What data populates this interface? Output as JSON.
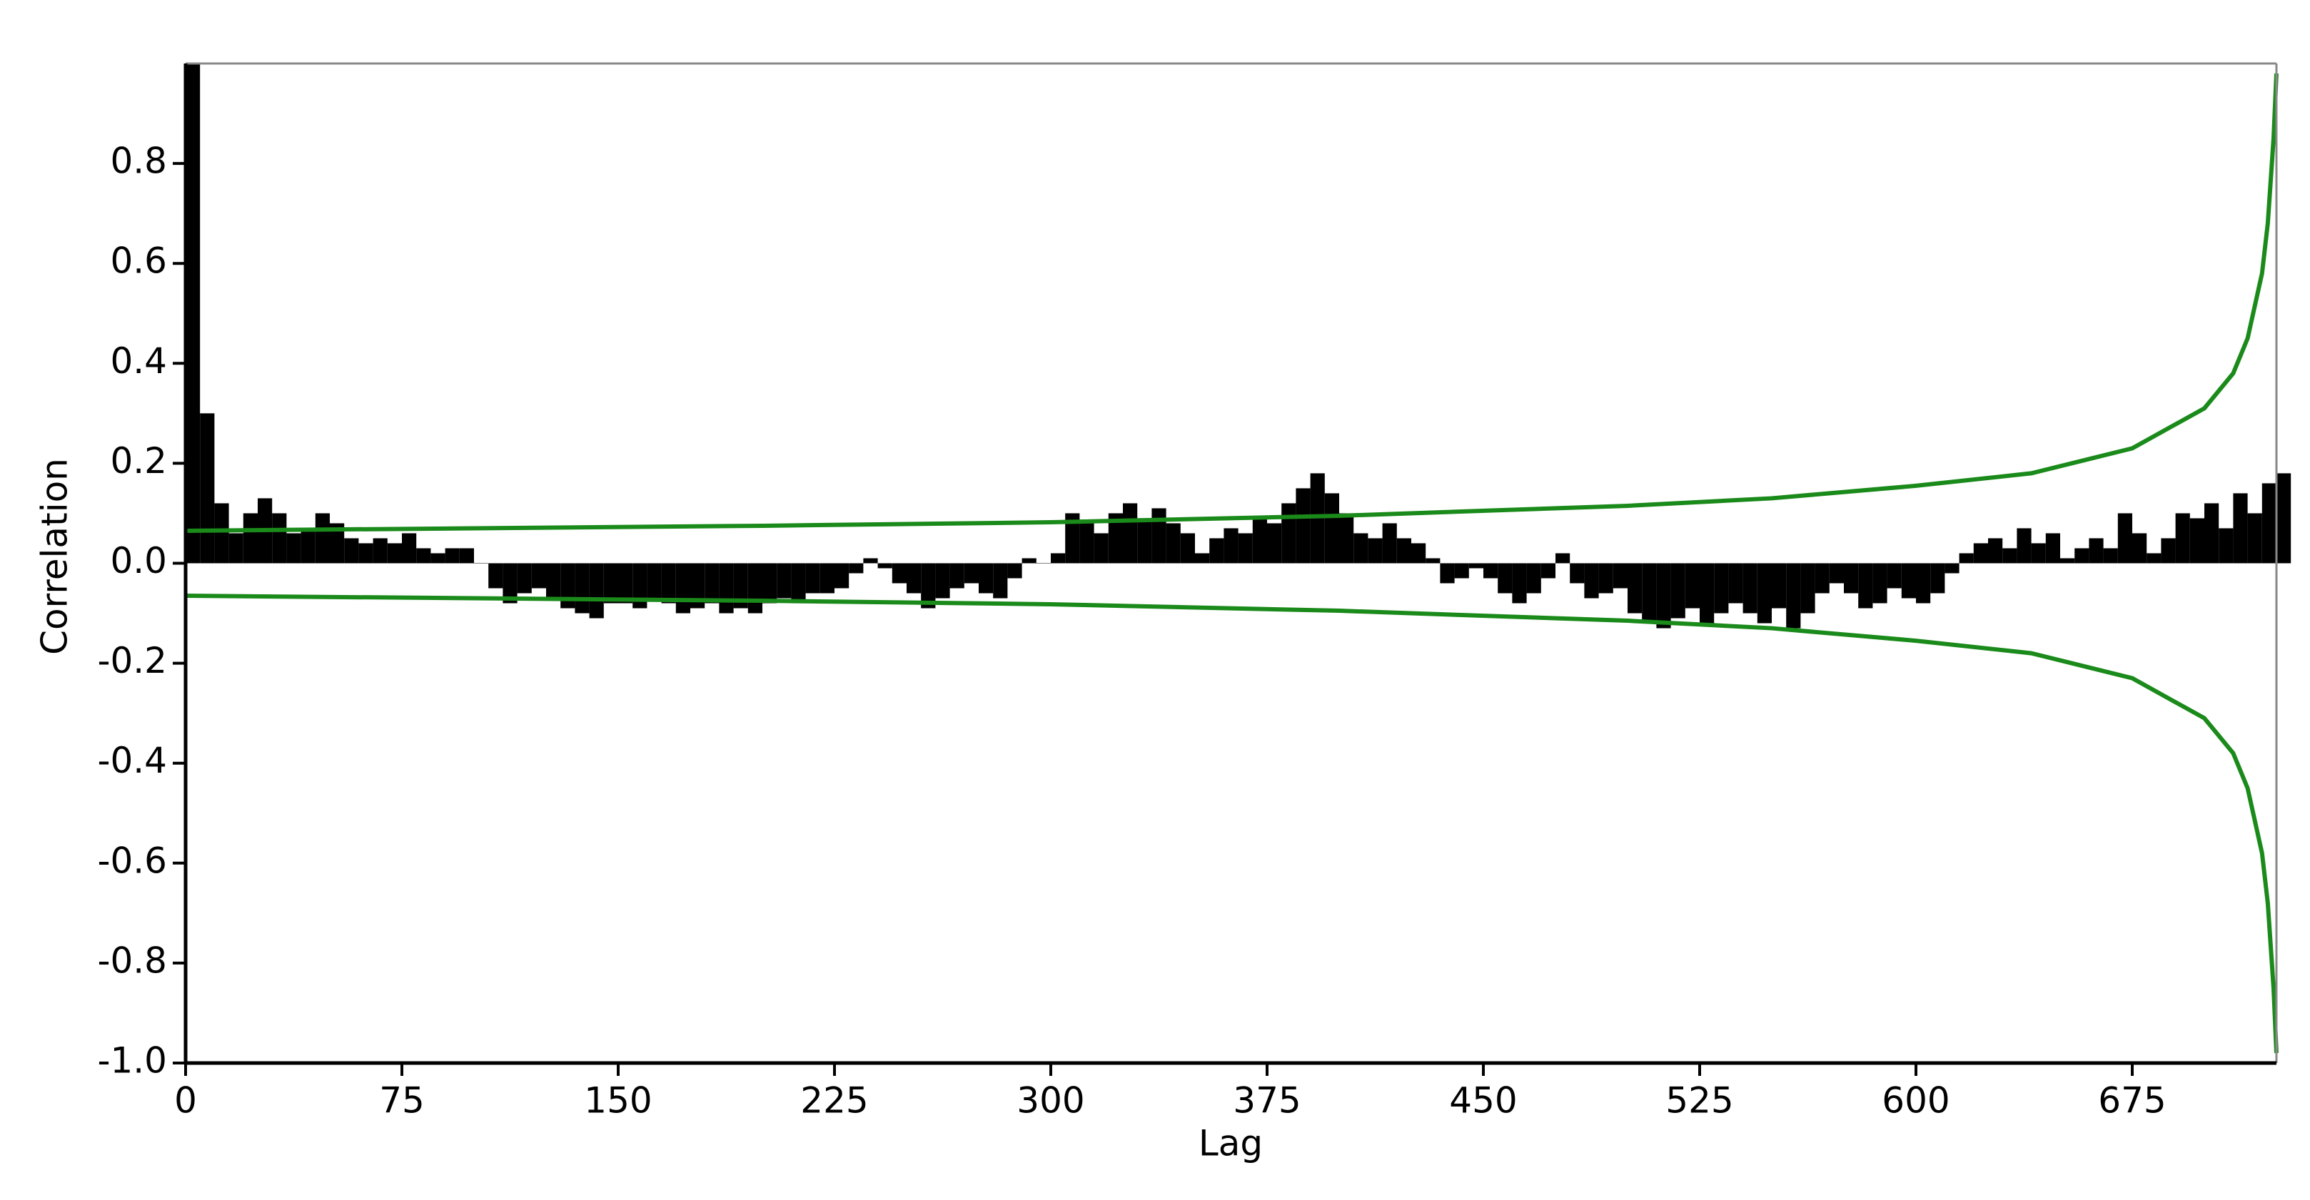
{
  "chart_data": {
    "type": "bar",
    "x_label": "Lag",
    "y_label": "Correlation",
    "x": [
      0,
      5,
      10,
      15,
      20,
      25,
      30,
      35,
      40,
      45,
      50,
      55,
      60,
      65,
      70,
      75,
      80,
      85,
      90,
      95,
      100,
      105,
      110,
      115,
      120,
      125,
      130,
      135,
      140,
      145,
      150,
      155,
      160,
      165,
      170,
      175,
      180,
      185,
      190,
      195,
      200,
      205,
      210,
      215,
      220,
      225,
      230,
      235,
      240,
      245,
      250,
      255,
      260,
      265,
      270,
      275,
      280,
      285,
      290,
      295,
      300,
      305,
      310,
      315,
      320,
      325,
      330,
      335,
      340,
      345,
      350,
      355,
      360,
      365,
      370,
      375,
      380,
      385,
      390,
      395,
      400,
      405,
      410,
      415,
      420,
      425,
      430,
      435,
      440,
      445,
      450,
      455,
      460,
      465,
      470,
      475,
      480,
      485,
      490,
      495,
      500,
      505,
      510,
      515,
      520,
      525,
      530,
      535,
      540,
      545,
      550,
      555,
      560,
      565,
      570,
      575,
      580,
      585,
      590,
      595,
      600,
      605,
      610,
      615,
      620,
      625,
      630,
      635,
      640,
      645,
      650,
      655,
      660,
      665,
      670,
      675,
      680,
      685,
      690,
      695,
      700,
      705,
      710,
      715,
      720,
      725
    ],
    "values": [
      1.0,
      0.3,
      0.12,
      0.06,
      0.1,
      0.13,
      0.1,
      0.06,
      0.07,
      0.1,
      0.08,
      0.05,
      0.04,
      0.05,
      0.04,
      0.06,
      0.03,
      0.02,
      0.03,
      0.03,
      0.0,
      -0.05,
      -0.08,
      -0.06,
      -0.05,
      -0.07,
      -0.09,
      -0.1,
      -0.11,
      -0.08,
      -0.08,
      -0.09,
      -0.07,
      -0.08,
      -0.1,
      -0.09,
      -0.08,
      -0.1,
      -0.09,
      -0.1,
      -0.08,
      -0.07,
      -0.08,
      -0.06,
      -0.06,
      -0.05,
      -0.02,
      0.01,
      -0.01,
      -0.04,
      -0.06,
      -0.09,
      -0.07,
      -0.05,
      -0.04,
      -0.06,
      -0.07,
      -0.03,
      0.01,
      0.0,
      0.02,
      0.1,
      0.08,
      0.06,
      0.1,
      0.12,
      0.09,
      0.11,
      0.08,
      0.06,
      0.02,
      0.05,
      0.07,
      0.06,
      0.09,
      0.08,
      0.12,
      0.15,
      0.18,
      0.14,
      0.1,
      0.06,
      0.05,
      0.08,
      0.05,
      0.04,
      0.01,
      -0.04,
      -0.03,
      -0.01,
      -0.03,
      -0.06,
      -0.08,
      -0.06,
      -0.03,
      0.02,
      -0.04,
      -0.07,
      -0.06,
      -0.05,
      -0.1,
      -0.12,
      -0.13,
      -0.11,
      -0.09,
      -0.12,
      -0.1,
      -0.08,
      -0.1,
      -0.12,
      -0.09,
      -0.13,
      -0.1,
      -0.06,
      -0.04,
      -0.06,
      -0.09,
      -0.08,
      -0.05,
      -0.07,
      -0.08,
      -0.06,
      -0.02,
      0.02,
      0.04,
      0.05,
      0.03,
      0.07,
      0.04,
      0.06,
      0.01,
      0.03,
      0.05,
      0.03,
      0.1,
      0.06,
      0.02,
      0.05,
      0.1,
      0.09,
      0.12,
      0.07,
      0.14,
      0.1,
      0.16,
      0.18
    ],
    "color": "#000000",
    "band": {
      "x": [
        0,
        100,
        200,
        300,
        400,
        500,
        550,
        600,
        640,
        675,
        700,
        710,
        715,
        720,
        722,
        724,
        725
      ],
      "upper": [
        0.065,
        0.07,
        0.075,
        0.082,
        0.095,
        0.115,
        0.13,
        0.155,
        0.18,
        0.23,
        0.31,
        0.38,
        0.45,
        0.58,
        0.68,
        0.85,
        0.98
      ],
      "lower": [
        -0.065,
        -0.07,
        -0.075,
        -0.082,
        -0.095,
        -0.115,
        -0.13,
        -0.155,
        -0.18,
        -0.23,
        -0.31,
        -0.38,
        -0.45,
        -0.58,
        -0.68,
        -0.85,
        -0.98
      ],
      "color": "#1a8a1a"
    },
    "xlim": [
      0,
      725
    ],
    "ylim": [
      -1,
      1
    ],
    "xticks": [
      0,
      75,
      150,
      225,
      300,
      375,
      450,
      525,
      600,
      675
    ],
    "yticks": [
      {
        "value": -1,
        "label": "-1.0"
      },
      -0.8,
      -0.6,
      -0.4,
      -0.2,
      {
        "value": 0,
        "label": "0.0"
      },
      0.2,
      0.4,
      0.6,
      0.8
    ]
  }
}
